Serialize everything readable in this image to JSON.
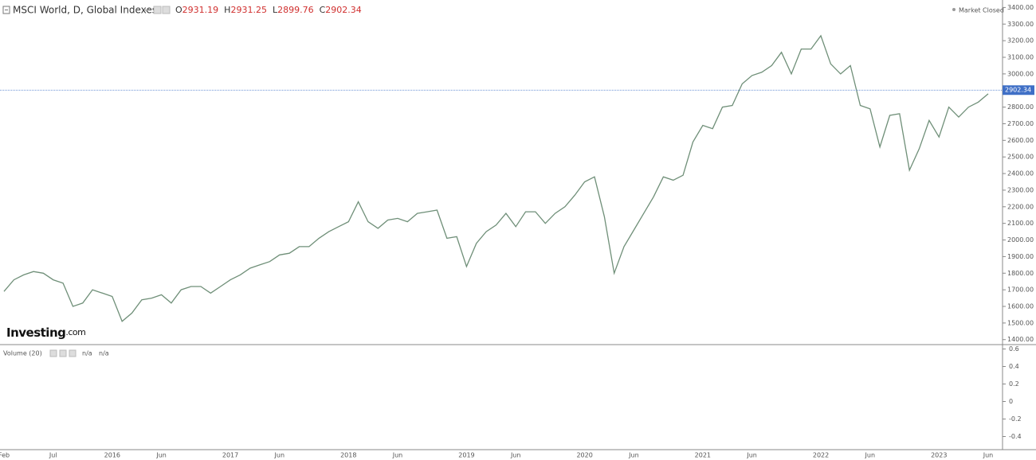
{
  "chart_data": {
    "type": "line",
    "title": "MSCI World, D, Global Indexes",
    "ohlc": [
      {
        "label": "O",
        "value": 2931.19
      },
      {
        "label": "H",
        "value": 2931.25
      },
      {
        "label": "L",
        "value": 2899.76
      },
      {
        "label": "C",
        "value": 2902.34
      }
    ],
    "status": "Market Closed",
    "watermark": "Investing",
    "watermark_suffix": ".com",
    "color": "#6f8f78",
    "price_line_color": "#3f6fc6",
    "categories": [
      "Feb",
      null,
      null,
      null,
      null,
      "Jul",
      null,
      null,
      null,
      null,
      null,
      "2016",
      null,
      null,
      null,
      null,
      "Jun",
      null,
      null,
      null,
      null,
      null,
      null,
      "2017",
      null,
      null,
      null,
      null,
      "Jun",
      null,
      null,
      null,
      null,
      null,
      null,
      "2018",
      null,
      null,
      null,
      null,
      "Jun",
      null,
      null,
      null,
      null,
      null,
      null,
      "2019",
      null,
      null,
      null,
      null,
      "Jun",
      null,
      null,
      null,
      null,
      null,
      null,
      "2020",
      null,
      null,
      null,
      null,
      "Jun",
      null,
      null,
      null,
      null,
      null,
      null,
      "2021",
      null,
      null,
      null,
      null,
      "Jun",
      null,
      null,
      null,
      null,
      null,
      null,
      "2022",
      null,
      null,
      null,
      null,
      "Jun",
      null,
      null,
      null,
      null,
      null,
      null,
      "2023",
      null,
      null,
      null,
      null,
      "Jun"
    ],
    "values": [
      1690,
      1760,
      1790,
      1810,
      1800,
      1760,
      1740,
      1600,
      1620,
      1700,
      1680,
      1660,
      1510,
      1560,
      1640,
      1650,
      1670,
      1620,
      1700,
      1720,
      1720,
      1680,
      1720,
      1760,
      1790,
      1830,
      1850,
      1870,
      1910,
      1920,
      1960,
      1960,
      2010,
      2050,
      2080,
      2110,
      2230,
      2110,
      2070,
      2120,
      2130,
      2110,
      2160,
      2170,
      2180,
      2010,
      2020,
      1840,
      1980,
      2050,
      2090,
      2160,
      2080,
      2170,
      2170,
      2100,
      2160,
      2200,
      2270,
      2350,
      2380,
      2140,
      1800,
      1960,
      2060,
      2160,
      2260,
      2380,
      2360,
      2390,
      2590,
      2690,
      2670,
      2800,
      2810,
      2940,
      2990,
      3010,
      3050,
      3130,
      3000,
      3150,
      3150,
      3230,
      3060,
      3000,
      3050,
      2810,
      2790,
      2560,
      2750,
      2760,
      2420,
      2550,
      2720,
      2620,
      2800,
      2740,
      2800,
      2830,
      2880
    ],
    "ylim": [
      1370,
      3445
    ],
    "yticks": [
      {
        "value": 1400,
        "label": "1400.00"
      },
      {
        "value": 1500,
        "label": "1500.00"
      },
      {
        "value": 1600,
        "label": "1600.00"
      },
      {
        "value": 1700,
        "label": "1700.00"
      },
      {
        "value": 1800,
        "label": "1800.00"
      },
      {
        "value": 1900,
        "label": "1900.00"
      },
      {
        "value": 2000,
        "label": "2000.00"
      },
      {
        "value": 2100,
        "label": "2100.00"
      },
      {
        "value": 2200,
        "label": "2200.00"
      },
      {
        "value": 2300,
        "label": "2300.00"
      },
      {
        "value": 2400,
        "label": "2400.00"
      },
      {
        "value": 2500,
        "label": "2500.00"
      },
      {
        "value": 2600,
        "label": "2600.00"
      },
      {
        "value": 2700,
        "label": "2700.00"
      },
      {
        "value": 2800,
        "label": "2800.00"
      },
      {
        "value": 2900,
        "label": "2900.00"
      },
      {
        "value": 3000,
        "label": "3000.00"
      },
      {
        "value": 3100,
        "label": "3100.00"
      },
      {
        "value": 3200,
        "label": "3200.00"
      },
      {
        "value": 3300,
        "label": "3300.00"
      },
      {
        "value": 3400,
        "label": "3400.00"
      }
    ],
    "volume_pane": {
      "title": "Volume (20)",
      "readouts": [
        "n/a",
        "n/a"
      ],
      "ylim": [
        -0.55,
        0.65
      ],
      "yticks": [
        0.6,
        0.4,
        0.2,
        0,
        -0.2,
        -0.4
      ]
    }
  }
}
